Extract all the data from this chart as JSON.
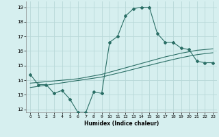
{
  "xlabel": "Humidex (Indice chaleur)",
  "ylabel": "",
  "bg_color": "#d6efef",
  "grid_color": "#b8d8d8",
  "line_color": "#2a6e65",
  "xlim": [
    -0.5,
    23.5
  ],
  "ylim": [
    11.8,
    19.4
  ],
  "yticks": [
    12,
    13,
    14,
    15,
    16,
    17,
    18,
    19
  ],
  "xticks": [
    0,
    1,
    2,
    3,
    4,
    5,
    6,
    7,
    8,
    9,
    10,
    11,
    12,
    13,
    14,
    15,
    16,
    17,
    18,
    19,
    20,
    21,
    22,
    23
  ],
  "main_x": [
    0,
    1,
    2,
    3,
    4,
    5,
    6,
    7,
    8,
    9,
    10,
    11,
    12,
    13,
    14,
    15,
    16,
    17,
    18,
    19,
    20,
    21,
    22,
    23
  ],
  "main_y": [
    14.4,
    13.7,
    13.7,
    13.1,
    13.3,
    12.7,
    11.8,
    11.8,
    13.2,
    13.1,
    16.6,
    17.0,
    18.4,
    18.9,
    19.0,
    19.0,
    17.2,
    16.6,
    16.6,
    16.2,
    16.1,
    15.3,
    15.2,
    15.2
  ],
  "line2_y": [
    13.8,
    13.85,
    13.9,
    13.95,
    14.0,
    14.05,
    14.1,
    14.2,
    14.3,
    14.4,
    14.55,
    14.7,
    14.85,
    15.0,
    15.15,
    15.3,
    15.45,
    15.6,
    15.72,
    15.85,
    15.95,
    16.05,
    16.1,
    16.15
  ],
  "line3_y": [
    13.5,
    13.58,
    13.66,
    13.74,
    13.82,
    13.9,
    13.98,
    14.06,
    14.14,
    14.22,
    14.35,
    14.48,
    14.61,
    14.75,
    14.89,
    15.02,
    15.16,
    15.29,
    15.42,
    15.54,
    15.65,
    15.75,
    15.82,
    15.88
  ]
}
